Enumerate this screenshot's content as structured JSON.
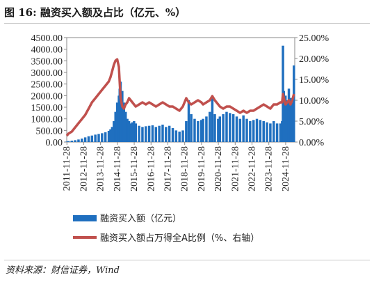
{
  "title": "图 16: 融资买入额及占比（亿元、%）",
  "source": "资料来源：财信证券，Wind",
  "chart_data": {
    "type": "bar+line",
    "left_axis": {
      "ylim": [
        0,
        4500
      ],
      "ticks": [
        0,
        500,
        1000,
        1500,
        2000,
        2500,
        3000,
        3500,
        4000,
        4500
      ],
      "tick_labels": [
        "0.00",
        "500.00",
        "1000.00",
        "1500.00",
        "2000.00",
        "2500.00",
        "3000.00",
        "3500.00",
        "4000.00",
        "4500.00"
      ]
    },
    "right_axis": {
      "ylim": [
        0,
        25
      ],
      "ticks": [
        0,
        5,
        10,
        15,
        20,
        25
      ],
      "tick_labels": [
        "0.00%",
        "5.00%",
        "10.00%",
        "15.00%",
        "20.00%",
        "25.00%"
      ]
    },
    "x_axis": {
      "range": [
        2011.9,
        2025.45
      ],
      "ticks": [
        2011.91,
        2012.91,
        2013.91,
        2014.91,
        2015.91,
        2016.91,
        2017.91,
        2018.91,
        2019.91,
        2020.91,
        2021.91,
        2022.91,
        2023.91,
        2024.91
      ],
      "tick_labels": [
        "2011-11-28",
        "2012-11-28",
        "2013-11-28",
        "2014-11-28",
        "2015-11-28",
        "2016-11-28",
        "2017-11-28",
        "2018-11-28",
        "2019-11-28",
        "2020-11-28",
        "2021-11-28",
        "2022-11-28",
        "2023-11-28",
        "2024-11-28"
      ]
    },
    "series": [
      {
        "name": "融资买入额（亿元）",
        "type": "bar",
        "axis": "left",
        "color": "#1f6fbf",
        "x": [
          2011.9,
          2012.0,
          2012.2,
          2012.4,
          2012.6,
          2012.8,
          2013.0,
          2013.2,
          2013.4,
          2013.6,
          2013.8,
          2014.0,
          2014.2,
          2014.4,
          2014.5,
          2014.6,
          2014.7,
          2014.8,
          2014.9,
          2015.0,
          2015.05,
          2015.1,
          2015.2,
          2015.3,
          2015.4,
          2015.5,
          2015.6,
          2015.7,
          2015.8,
          2015.9,
          2016.0,
          2016.2,
          2016.4,
          2016.6,
          2016.8,
          2017.0,
          2017.2,
          2017.4,
          2017.6,
          2017.8,
          2018.0,
          2018.2,
          2018.4,
          2018.6,
          2018.8,
          2019.0,
          2019.15,
          2019.3,
          2019.5,
          2019.7,
          2019.9,
          2020.0,
          2020.2,
          2020.4,
          2020.55,
          2020.7,
          2020.9,
          2021.0,
          2021.2,
          2021.4,
          2021.6,
          2021.8,
          2022.0,
          2022.2,
          2022.4,
          2022.6,
          2022.8,
          2023.0,
          2023.2,
          2023.4,
          2023.6,
          2023.8,
          2024.0,
          2024.2,
          2024.4,
          2024.6,
          2024.7,
          2024.75,
          2024.8,
          2024.9,
          2025.0,
          2025.1,
          2025.2,
          2025.3,
          2025.4
        ],
        "values": [
          20,
          40,
          60,
          80,
          110,
          150,
          200,
          250,
          280,
          320,
          350,
          380,
          420,
          480,
          550,
          650,
          900,
          1300,
          1700,
          2000,
          2300,
          2600,
          2200,
          1700,
          1300,
          1000,
          900,
          800,
          850,
          900,
          800,
          700,
          650,
          680,
          700,
          720,
          650,
          700,
          750,
          650,
          700,
          600,
          500,
          450,
          500,
          900,
          1800,
          1200,
          1000,
          900,
          950,
          1000,
          1100,
          1300,
          1900,
          1200,
          1000,
          1100,
          1200,
          1300,
          1250,
          1200,
          1100,
          1000,
          1150,
          1000,
          900,
          950,
          1000,
          950,
          900,
          850,
          800,
          900,
          800,
          800,
          900,
          4150,
          2200,
          2000,
          1800,
          2300,
          1900,
          1700,
          3300
        ]
      },
      {
        "name": "融资买入额占万得全A比例（%、右轴）",
        "type": "line",
        "axis": "right",
        "color": "#c0504d",
        "x": [
          2011.9,
          2012.0,
          2012.2,
          2012.4,
          2012.6,
          2012.8,
          2013.0,
          2013.2,
          2013.4,
          2013.6,
          2013.8,
          2014.0,
          2014.2,
          2014.4,
          2014.5,
          2014.6,
          2014.7,
          2014.8,
          2014.9,
          2015.0,
          2015.05,
          2015.1,
          2015.2,
          2015.3,
          2015.4,
          2015.5,
          2015.6,
          2015.7,
          2015.8,
          2015.9,
          2016.0,
          2016.2,
          2016.4,
          2016.6,
          2016.8,
          2017.0,
          2017.2,
          2017.4,
          2017.6,
          2017.8,
          2018.0,
          2018.2,
          2018.4,
          2018.6,
          2018.8,
          2019.0,
          2019.15,
          2019.3,
          2019.5,
          2019.7,
          2019.9,
          2020.0,
          2020.2,
          2020.4,
          2020.55,
          2020.7,
          2020.9,
          2021.0,
          2021.2,
          2021.4,
          2021.6,
          2021.8,
          2022.0,
          2022.2,
          2022.4,
          2022.6,
          2022.8,
          2023.0,
          2023.2,
          2023.4,
          2023.6,
          2023.8,
          2024.0,
          2024.2,
          2024.4,
          2024.6,
          2024.7,
          2024.75,
          2024.8,
          2024.9,
          2025.0,
          2025.1,
          2025.2,
          2025.3,
          2025.4
        ],
        "values": [
          1.5,
          2.0,
          2.5,
          3.5,
          4.5,
          5.5,
          6.5,
          8.0,
          9.5,
          10.5,
          11.5,
          12.5,
          13.5,
          14.5,
          15.5,
          17.0,
          18.5,
          19.5,
          19.8,
          18.0,
          14.0,
          10.5,
          8.5,
          8.0,
          9.0,
          9.5,
          10.5,
          10.0,
          9.5,
          9.0,
          8.5,
          9.0,
          9.5,
          9.0,
          9.5,
          9.0,
          8.5,
          9.0,
          9.5,
          9.0,
          8.5,
          8.5,
          8.0,
          7.5,
          8.5,
          10.5,
          9.5,
          9.0,
          9.5,
          10.0,
          9.5,
          9.0,
          9.5,
          10.0,
          11.0,
          10.0,
          9.0,
          8.5,
          8.0,
          8.5,
          8.5,
          8.0,
          7.5,
          7.0,
          7.5,
          7.0,
          7.5,
          7.5,
          8.0,
          8.5,
          9.0,
          8.5,
          8.0,
          9.0,
          9.0,
          9.5,
          9.5,
          11.5,
          10.5,
          9.0,
          9.5,
          10.0,
          9.0,
          10.0,
          11.5
        ]
      }
    ]
  }
}
